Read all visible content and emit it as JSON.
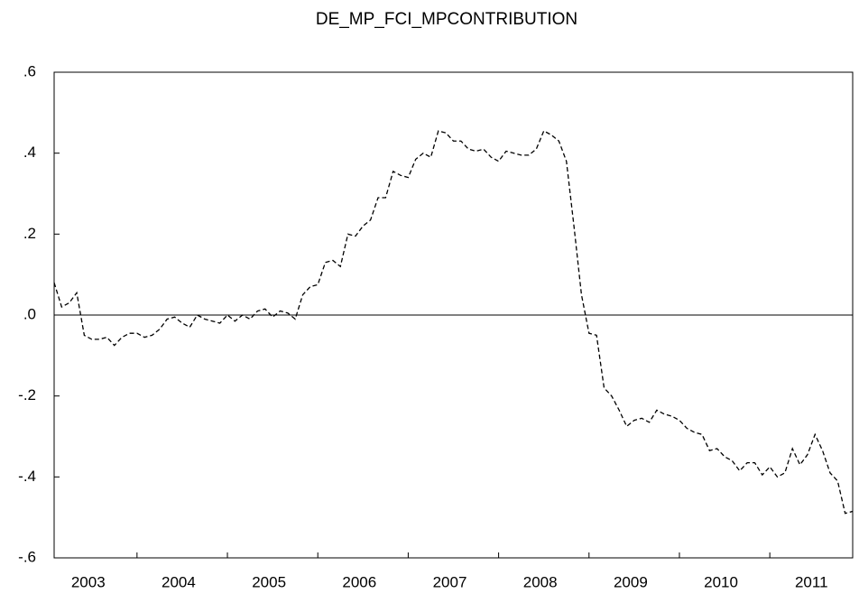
{
  "chart_data": {
    "type": "line",
    "title": "DE_MP_FCI_MPCONTRIBUTION",
    "categories": [
      null,
      null,
      null,
      null,
      null,
      "2003",
      null,
      null,
      null,
      null,
      null,
      null,
      null,
      null,
      null,
      null,
      null,
      "2004",
      null,
      null,
      null,
      null,
      null,
      null,
      null,
      null,
      null,
      null,
      null,
      "2005",
      null,
      null,
      null,
      null,
      null,
      null,
      null,
      null,
      null,
      null,
      null,
      "2006",
      null,
      null,
      null,
      null,
      null,
      null,
      null,
      null,
      null,
      null,
      null,
      "2007",
      null,
      null,
      null,
      null,
      null,
      null,
      null,
      null,
      null,
      null,
      null,
      "2008",
      null,
      null,
      null,
      null,
      null,
      null,
      null,
      null,
      null,
      null,
      null,
      "2009",
      null,
      null,
      null,
      null,
      null,
      null,
      null,
      null,
      null,
      null,
      null,
      "2010",
      null,
      null,
      null,
      null,
      null,
      null,
      null,
      null,
      null,
      null,
      null,
      "2011",
      null,
      null,
      null,
      null,
      null
    ],
    "series": [
      {
        "color": "#000000",
        "values": [
          0.08,
          0.02,
          0.03,
          0.055,
          -0.05,
          -0.06,
          -0.06,
          -0.055,
          -0.075,
          -0.055,
          -0.045,
          -0.045,
          -0.055,
          -0.05,
          -0.035,
          -0.01,
          -0.005,
          -0.02,
          -0.03,
          0.0,
          -0.01,
          -0.015,
          -0.02,
          0.0,
          -0.015,
          0.0,
          -0.01,
          0.01,
          0.015,
          -0.005,
          0.01,
          0.005,
          -0.01,
          0.05,
          0.07,
          0.075,
          0.13,
          0.135,
          0.12,
          0.2,
          0.195,
          0.22,
          0.235,
          0.29,
          0.29,
          0.355,
          0.345,
          0.34,
          0.385,
          0.4,
          0.39,
          0.455,
          0.45,
          0.43,
          0.43,
          0.41,
          0.405,
          0.41,
          0.39,
          0.38,
          0.405,
          0.4,
          0.395,
          0.395,
          0.41,
          0.455,
          0.445,
          0.43,
          0.38,
          0.22,
          0.05,
          -0.045,
          -0.05,
          -0.18,
          -0.2,
          -0.235,
          -0.275,
          -0.26,
          -0.255,
          -0.265,
          -0.235,
          -0.245,
          -0.25,
          -0.26,
          -0.28,
          -0.29,
          -0.295,
          -0.335,
          -0.33,
          -0.35,
          -0.36,
          -0.385,
          -0.365,
          -0.365,
          -0.395,
          -0.375,
          -0.4,
          -0.39,
          -0.33,
          -0.37,
          -0.345,
          -0.295,
          -0.335,
          -0.39,
          -0.41,
          -0.49,
          -0.485
        ]
      }
    ],
    "ylim": [
      -0.6,
      0.6
    ],
    "yticks": [
      {
        "value": 0.6,
        "label": ".6"
      },
      {
        "value": 0.4,
        "label": ".4"
      },
      {
        "value": 0.2,
        "label": ".2"
      },
      {
        "value": 0,
        "label": ".0"
      },
      {
        "value": -0.2,
        "label": "-.2"
      },
      {
        "value": -0.4,
        "label": "-.4"
      },
      {
        "value": -0.6,
        "label": "-.6"
      }
    ],
    "zero_line": true,
    "line_style": "dashed"
  }
}
